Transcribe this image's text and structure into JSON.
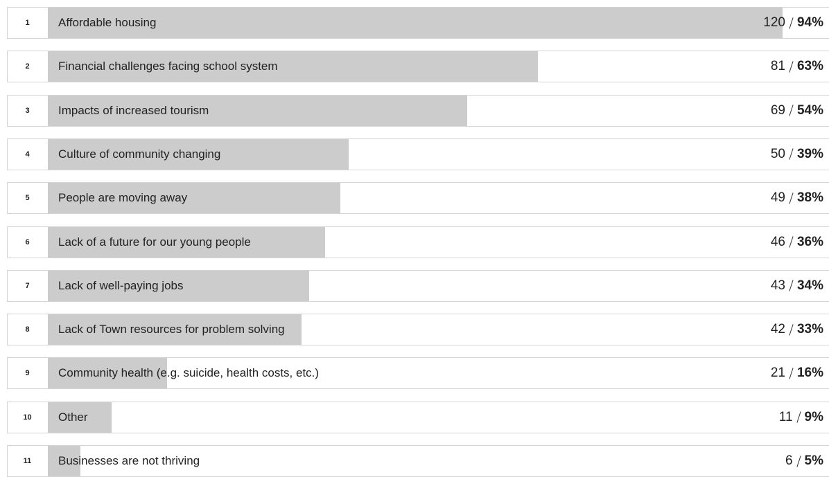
{
  "chart_data": {
    "type": "bar",
    "color": "#cccccc",
    "ranks": [
      1,
      2,
      3,
      4,
      5,
      6,
      7,
      8,
      9,
      10,
      11
    ],
    "categories": [
      "Affordable housing",
      "Financial challenges facing school system",
      "Impacts of increased tourism",
      "Culture of community changing",
      "People are moving away",
      "Lack of a future for our young people",
      "Lack of well-paying jobs",
      "Lack of Town resources for problem solving",
      "Community health (e.g. suicide, health costs, etc.)",
      "Other",
      "Businesses are not thriving"
    ],
    "counts": [
      120,
      81,
      69,
      50,
      49,
      46,
      43,
      42,
      21,
      11,
      6
    ],
    "values": [
      94,
      63,
      54,
      39,
      38,
      36,
      34,
      33,
      16,
      9,
      5
    ],
    "value_labels": [
      "94%",
      "63%",
      "54%",
      "39%",
      "38%",
      "36%",
      "34%",
      "33%",
      "16%",
      "9%",
      "5%"
    ]
  }
}
